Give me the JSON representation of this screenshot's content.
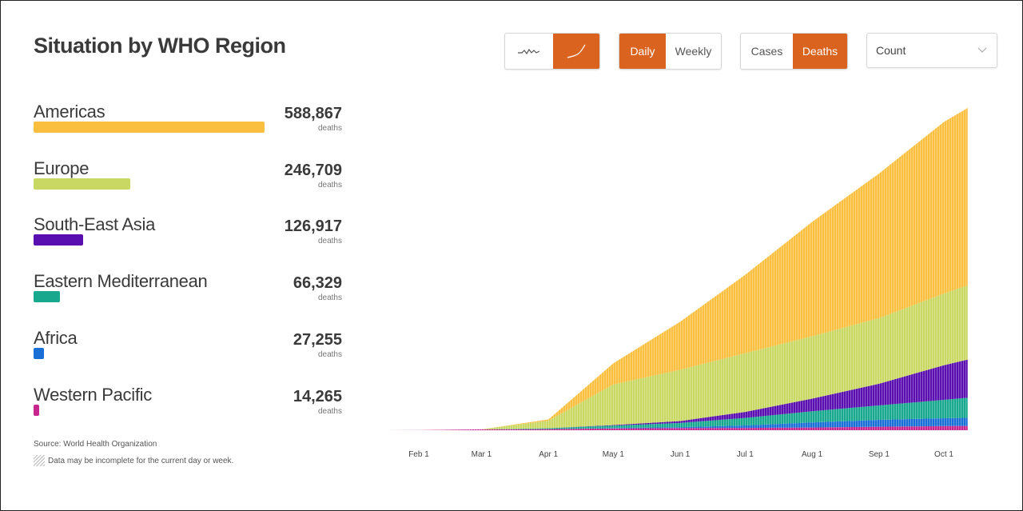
{
  "title": "Situation by WHO Region",
  "controls": {
    "chart_style": [
      {
        "icon": "daily-line-icon",
        "active": false
      },
      {
        "icon": "cumulative-curve-icon",
        "active": true
      }
    ],
    "period": [
      {
        "label": "Daily",
        "active": true
      },
      {
        "label": "Weekly",
        "active": false
      }
    ],
    "metric": [
      {
        "label": "Cases",
        "active": false
      },
      {
        "label": "Deaths",
        "active": true
      }
    ],
    "scale_select": {
      "value": "Count"
    }
  },
  "regions": [
    {
      "name": "Americas",
      "value": "588,867",
      "unit": "deaths",
      "count": 588867,
      "color": "#fbbf3f"
    },
    {
      "name": "Europe",
      "value": "246,709",
      "unit": "deaths",
      "count": 246709,
      "color": "#c9d862"
    },
    {
      "name": "South-East Asia",
      "value": "126,917",
      "unit": "deaths",
      "count": 126917,
      "color": "#5a0fb0"
    },
    {
      "name": "Eastern Mediterranean",
      "value": "66,329",
      "unit": "deaths",
      "count": 66329,
      "color": "#17a88e"
    },
    {
      "name": "Africa",
      "value": "27,255",
      "unit": "deaths",
      "count": 27255,
      "color": "#1a6fd6"
    },
    {
      "name": "Western Pacific",
      "value": "14,265",
      "unit": "deaths",
      "count": 14265,
      "color": "#c8268f"
    }
  ],
  "source": "Source: World Health Organization",
  "note": "Data may be incomplete for the current day or week.",
  "chart_data": {
    "type": "area",
    "stacked": true,
    "cumulative": true,
    "x_ticks": [
      "Feb 1",
      "Mar 1",
      "Apr 1",
      "May 1",
      "Jun 1",
      "Jul 1",
      "Aug 1",
      "Sep 1",
      "Oct 1"
    ],
    "x": [
      "Feb 1",
      "Mar 1",
      "Apr 1",
      "May 1",
      "Jun 1",
      "Jul 1",
      "Aug 1",
      "Sep 1",
      "Oct 1",
      "Oct 12"
    ],
    "series": [
      {
        "name": "Western Pacific",
        "color": "#c8268f",
        "values": [
          260,
          2900,
          3500,
          6000,
          7200,
          7800,
          9000,
          11500,
          13900,
          14265
        ]
      },
      {
        "name": "Africa",
        "color": "#1a6fd6",
        "values": [
          0,
          0,
          100,
          1300,
          3000,
          8000,
          17000,
          23000,
          26000,
          27255
        ]
      },
      {
        "name": "Eastern Mediterranean",
        "color": "#17a88e",
        "values": [
          0,
          10,
          3000,
          8000,
          14000,
          25000,
          37000,
          48000,
          61000,
          66329
        ]
      },
      {
        "name": "South-East Asia",
        "color": "#5a0fb0",
        "values": [
          0,
          0,
          100,
          1800,
          6500,
          20000,
          42000,
          72000,
          115000,
          126917
        ]
      },
      {
        "name": "Europe",
        "color": "#c9d862",
        "values": [
          0,
          30,
          25000,
          135000,
          170000,
          195000,
          207000,
          218000,
          238000,
          246709
        ]
      },
      {
        "name": "Americas",
        "color": "#fbbf3f",
        "values": [
          0,
          0,
          4000,
          70000,
          160000,
          260000,
          380000,
          480000,
          570000,
          588867
        ]
      }
    ],
    "grid": false,
    "legend": "left"
  }
}
